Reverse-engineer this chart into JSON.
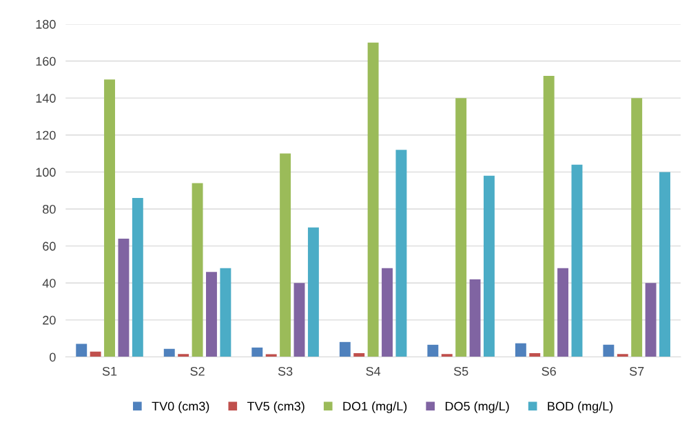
{
  "chart_data": {
    "type": "bar",
    "categories": [
      "S1",
      "S2",
      "S3",
      "S4",
      "S5",
      "S6",
      "S7"
    ],
    "series": [
      {
        "name": "TV0 (cm3)",
        "color": "#4f81bd",
        "values": [
          7.1,
          4.4,
          5.1,
          8.1,
          6.6,
          7.4,
          6.6
        ]
      },
      {
        "name": "TV5 (cm3)",
        "color": "#c0504d",
        "values": [
          2.9,
          1.6,
          1.5,
          2.1,
          1.6,
          2.1,
          1.6
        ]
      },
      {
        "name": "DO1 (mg/L)",
        "color": "#9bbb59",
        "values": [
          150,
          94,
          110,
          170,
          140,
          152,
          140
        ]
      },
      {
        "name": "DO5 (mg/L)",
        "color": "#8064a2",
        "values": [
          64,
          46,
          40,
          48,
          42,
          48,
          40
        ]
      },
      {
        "name": "BOD (mg/L)",
        "color": "#4bacc6",
        "values": [
          86,
          48,
          70,
          112,
          98,
          104,
          100
        ]
      }
    ],
    "ylim": [
      0,
      180
    ],
    "yticks": [
      0,
      20,
      40,
      60,
      80,
      100,
      120,
      140,
      160,
      180
    ],
    "grid": "y",
    "legend": "bottom"
  }
}
